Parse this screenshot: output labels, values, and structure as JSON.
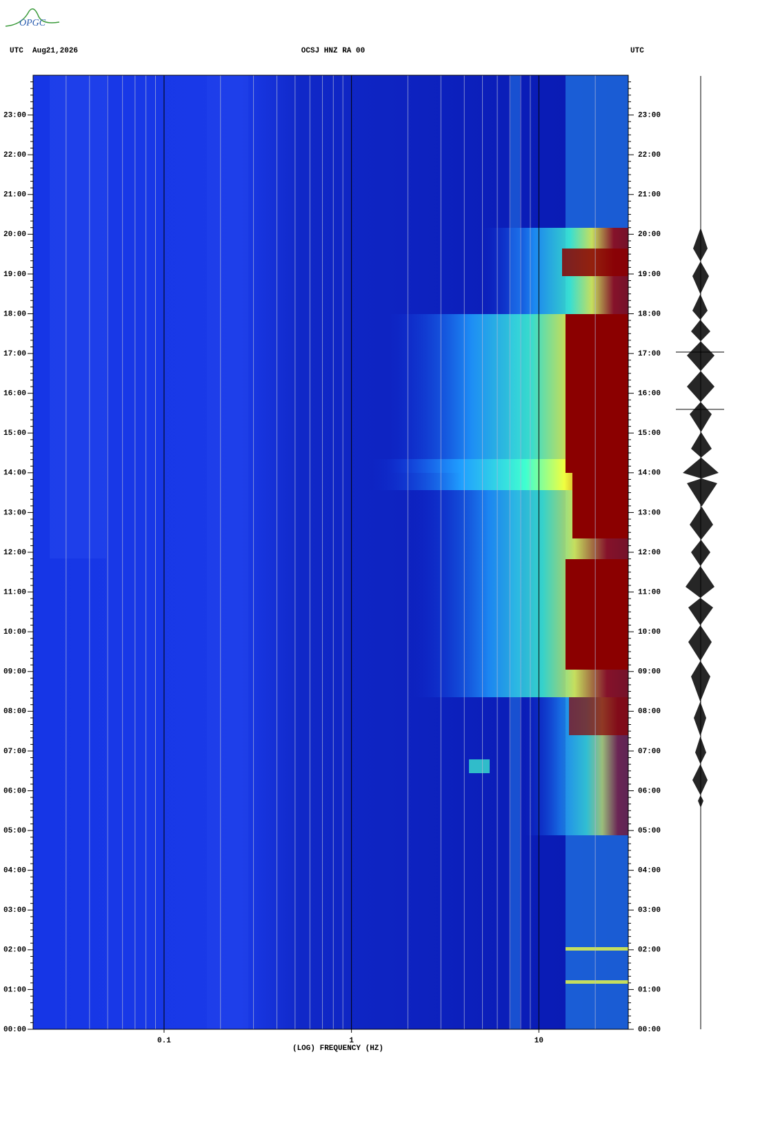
{
  "logo": "OPGC",
  "chart_data": {
    "type": "spectrogram",
    "header_left": "UTC  Aug21,2026",
    "title": "OCSJ HNZ RA 00",
    "header_right": "UTC",
    "x_label": "(LOG) FREQUENCY (HZ)",
    "x_scale": "log",
    "xlim": [
      0.02,
      30
    ],
    "xticks": [
      0.1,
      1,
      10
    ],
    "minor_xgrid": [
      0.03,
      0.04,
      0.05,
      0.06,
      0.07,
      0.08,
      0.09,
      0.2,
      0.3,
      0.4,
      0.5,
      0.6,
      0.7,
      0.8,
      0.9,
      2,
      3,
      4,
      5,
      6,
      7,
      8,
      9,
      20
    ],
    "ylim": [
      0,
      24
    ],
    "yticks": [
      {
        "value": 0,
        "label": "00:00"
      },
      {
        "value": 1,
        "label": "01:00"
      },
      {
        "value": 2,
        "label": "02:00"
      },
      {
        "value": 3,
        "label": "03:00"
      },
      {
        "value": 4,
        "label": "04:00"
      },
      {
        "value": 5,
        "label": "05:00"
      },
      {
        "value": 6,
        "label": "06:00"
      },
      {
        "value": 7,
        "label": "07:00"
      },
      {
        "value": 8,
        "label": "08:00"
      },
      {
        "value": 9,
        "label": "09:00"
      },
      {
        "value": 10,
        "label": "10:00"
      },
      {
        "value": 11,
        "label": "11:00"
      },
      {
        "value": 12,
        "label": "12:00"
      },
      {
        "value": 13,
        "label": "13:00"
      },
      {
        "value": 14,
        "label": "14:00"
      },
      {
        "value": 15,
        "label": "15:00"
      },
      {
        "value": 16,
        "label": "16:00"
      },
      {
        "value": 17,
        "label": "17:00"
      },
      {
        "value": 18,
        "label": "18:00"
      },
      {
        "value": 19,
        "label": "19:00"
      },
      {
        "value": 20,
        "label": "20:00"
      },
      {
        "value": 21,
        "label": "21:00"
      },
      {
        "value": 22,
        "label": "22:00"
      },
      {
        "value": 23,
        "label": "23:00"
      }
    ]
  }
}
